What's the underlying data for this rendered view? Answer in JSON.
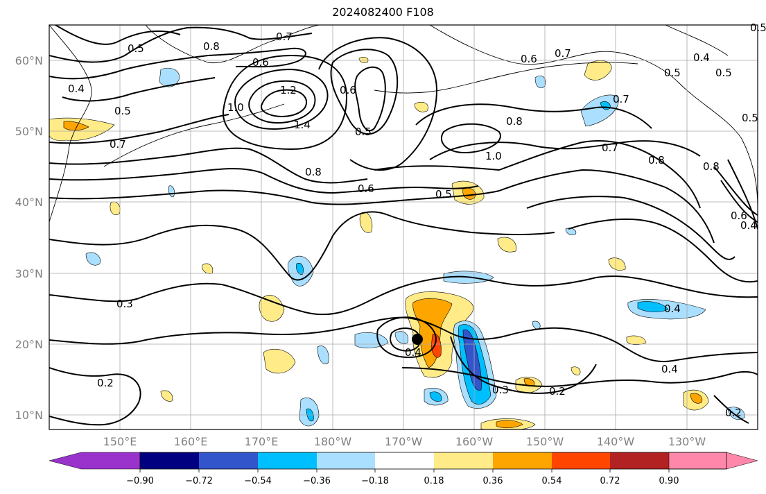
{
  "title": "2024082400 F108",
  "lat_labels": [
    "60°N",
    "50°N",
    "40°N",
    "30°N",
    "20°N",
    "10°N"
  ],
  "lon_labels": [
    "150°E",
    "160°E",
    "170°E",
    "180°W",
    "170°W",
    "160°W",
    "150°W",
    "140°W",
    "130°W"
  ],
  "colorbar": {
    "ticks": [
      "−0.90",
      "−0.72",
      "−0.54",
      "−0.36",
      "−0.18",
      "0.18",
      "0.36",
      "0.54",
      "0.72",
      "0.90"
    ],
    "colors": [
      "#9933cc",
      "#000080",
      "#3355cc",
      "#00bfff",
      "#aadfff",
      "#ffffff",
      "#ffeb88",
      "#ffa500",
      "#ff4500",
      "#b22222",
      "#ff88aa"
    ]
  },
  "contour_labels": [
    "0.7",
    "0.6",
    "0.8",
    "0.5",
    "0.4",
    "0.5",
    "0.7",
    "1.0",
    "1.2",
    "1.4",
    "0.6",
    "0.5",
    "0.6",
    "0.8",
    "0.6",
    "0.5",
    "0.8",
    "1.0",
    "0.7",
    "0.8",
    "0.8",
    "0.7",
    "0.5",
    "0.4",
    "0.5",
    "0.6",
    "0.4",
    "0.3",
    "0.2",
    "0.4",
    "0.4",
    "0.3",
    "0.2",
    "0.4",
    "0.2",
    "0.5",
    "0.7",
    "0.5"
  ]
}
